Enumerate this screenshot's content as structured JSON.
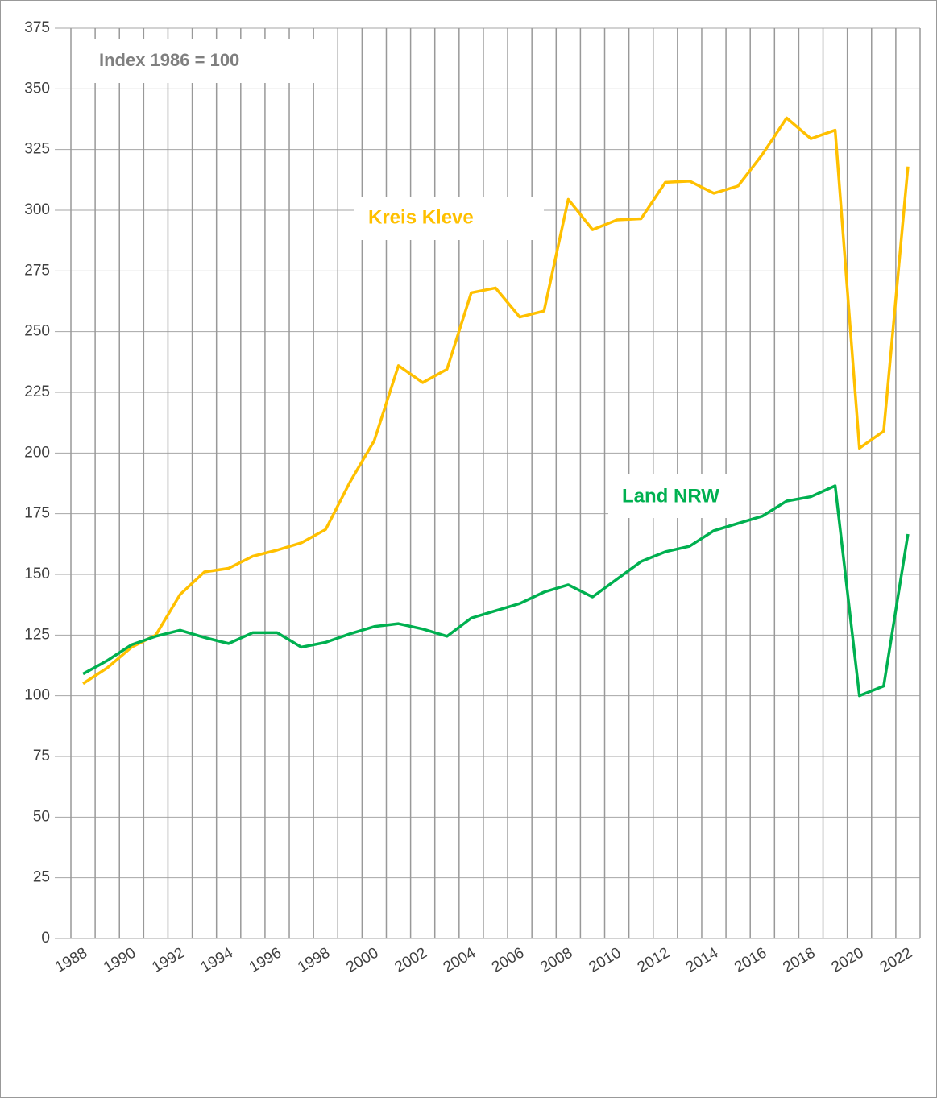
{
  "chart_data": {
    "type": "line",
    "annotation": "Index 1986 = 100",
    "categories": [
      "1988",
      null,
      "1990",
      null,
      "1992",
      null,
      "1994",
      null,
      "1996",
      null,
      "1998",
      null,
      "2000",
      null,
      "2002",
      null,
      "2004",
      null,
      "2006",
      null,
      "2008",
      null,
      "2010",
      null,
      "2012",
      null,
      "2014",
      null,
      "2016",
      null,
      "2018",
      null,
      "2020",
      null,
      "2022"
    ],
    "series": [
      {
        "name": "Kreis Kleve",
        "color": "#ffc000",
        "values": [
          105,
          111.5,
          120,
          125,
          141.7,
          151,
          152.5,
          157.5,
          160,
          163,
          168.5,
          188,
          205,
          236,
          229,
          234.5,
          266,
          268,
          256,
          258.5,
          304.5,
          292,
          296,
          296.5,
          311.5,
          312,
          307,
          310,
          323,
          338,
          329.5,
          333,
          202,
          209,
          318
        ]
      },
      {
        "name": "Land NRW",
        "color": "#00b050",
        "values": [
          109,
          114.5,
          121,
          124.5,
          127,
          124,
          121.5,
          126,
          126,
          120,
          122,
          125.5,
          128.5,
          129.7,
          127.5,
          124.5,
          132,
          135,
          138,
          142.7,
          145.7,
          140.7,
          148,
          155.3,
          159.3,
          161.6,
          168,
          171,
          174,
          180.2,
          182,
          186.5,
          100,
          104,
          166.6
        ]
      }
    ],
    "ylim": [
      0,
      375
    ],
    "yticks": [
      0,
      25,
      50,
      75,
      100,
      125,
      150,
      175,
      200,
      225,
      250,
      275,
      300,
      325,
      350,
      375
    ],
    "grid": true
  }
}
